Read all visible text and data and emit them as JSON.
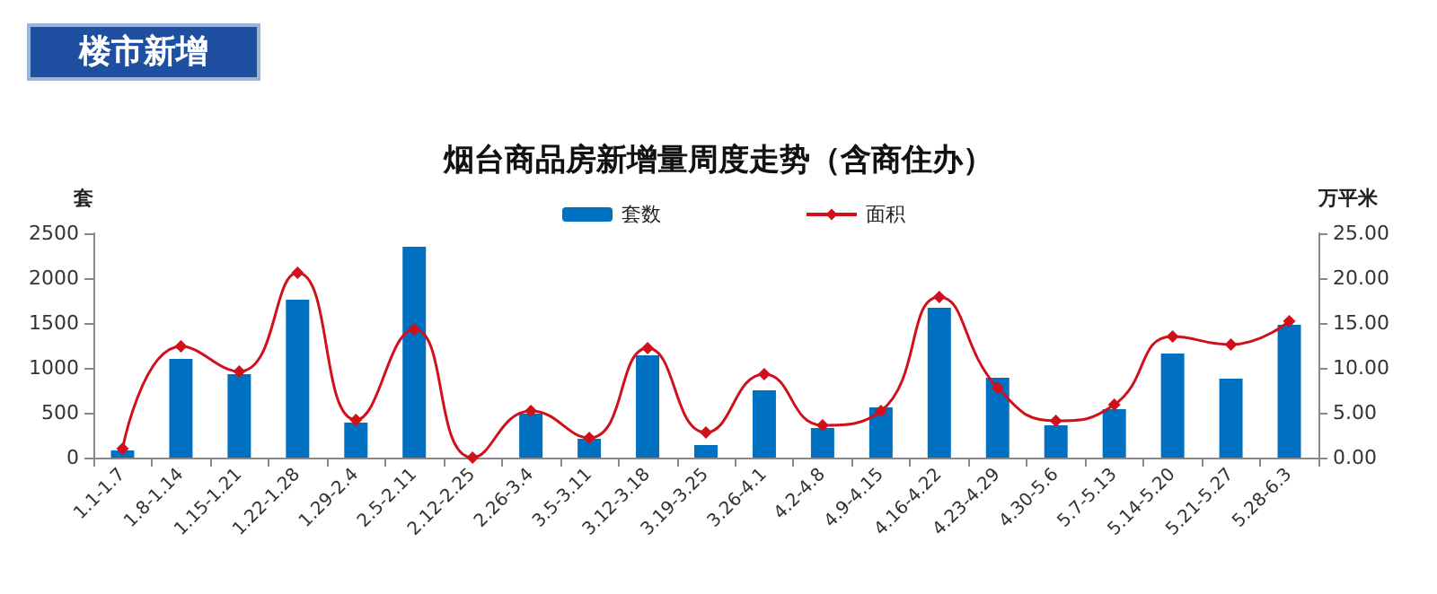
{
  "chart_data": {
    "type": "bar",
    "title": "烟台商品房新增量周度走势（含商住办）",
    "annotations": [
      "楼市新增"
    ],
    "ylabel": "套",
    "y2label": "万平米",
    "categories": [
      "1.1-1.7",
      "1.8-1.14",
      "1.15-1.21",
      "1.22-1.28",
      "1.29-2.4",
      "2.5-2.11",
      "2.12-2.25",
      "2.26-3.4",
      "3.5-3.11",
      "3.12-3.18",
      "3.19-3.25",
      "3.26-4.1",
      "4.2-4.8",
      "4.9-4.15",
      "4.16-4.22",
      "4.23-4.29",
      "4.30-5.6",
      "5.7-5.13",
      "5.14-5.20",
      "5.21-5.27",
      "5.28-6.3"
    ],
    "series": [
      {
        "name": "套数",
        "color": "#0070c0",
        "values": [
          80,
          1100,
          930,
          1760,
          390,
          2350,
          0,
          490,
          210,
          1140,
          140,
          750,
          330,
          560,
          1670,
          890,
          360,
          540,
          1160,
          880,
          1480
        ]
      },
      {
        "name": "面积",
        "type": "line",
        "axis": "y2",
        "color": "#d0111b",
        "values": [
          1.0,
          12.4,
          9.6,
          20.6,
          4.2,
          14.3,
          0,
          5.2,
          2.2,
          12.2,
          2.8,
          9.3,
          3.6,
          5.2,
          17.9,
          7.8,
          4.1,
          5.9,
          13.5,
          12.6,
          15.2
        ]
      }
    ],
    "ylim": [
      0,
      2500
    ],
    "yticks": [
      0,
      500,
      1000,
      1500,
      2000,
      2500
    ],
    "y2lim": [
      0,
      25
    ],
    "y2ticks": [
      {
        "value": 0,
        "label": "0.00"
      },
      {
        "value": 5,
        "label": "5.00"
      },
      {
        "value": 10,
        "label": "10.00"
      },
      {
        "value": 15,
        "label": "15.00"
      },
      {
        "value": 20,
        "label": "20.00"
      },
      {
        "value": 25,
        "label": "25.00"
      }
    ],
    "grid": false,
    "legend": "top right",
    "marker": "diamond",
    "line_style": "solid"
  }
}
